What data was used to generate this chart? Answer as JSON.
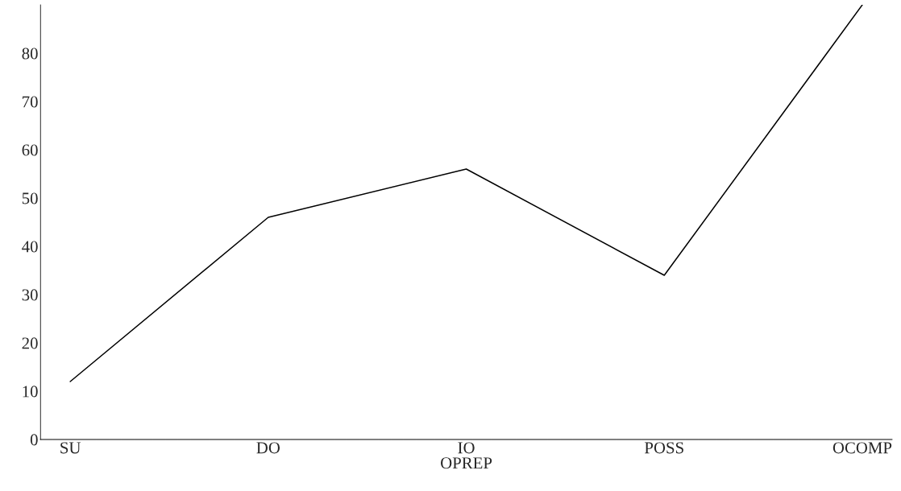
{
  "chart_data": {
    "type": "line",
    "xlabel": "OPREP",
    "categories": [
      "SU",
      "DO",
      "IO",
      "POSS",
      "OCOMP"
    ],
    "series": [
      {
        "color": "#000000",
        "values": [
          12,
          46,
          56,
          34,
          90
        ]
      }
    ],
    "ylim": [
      0,
      90
    ],
    "yticks": [
      0,
      10,
      20,
      30,
      40,
      50,
      60,
      70,
      80
    ],
    "grid": false,
    "legend": false,
    "marker": "none",
    "line_style": "solid"
  }
}
